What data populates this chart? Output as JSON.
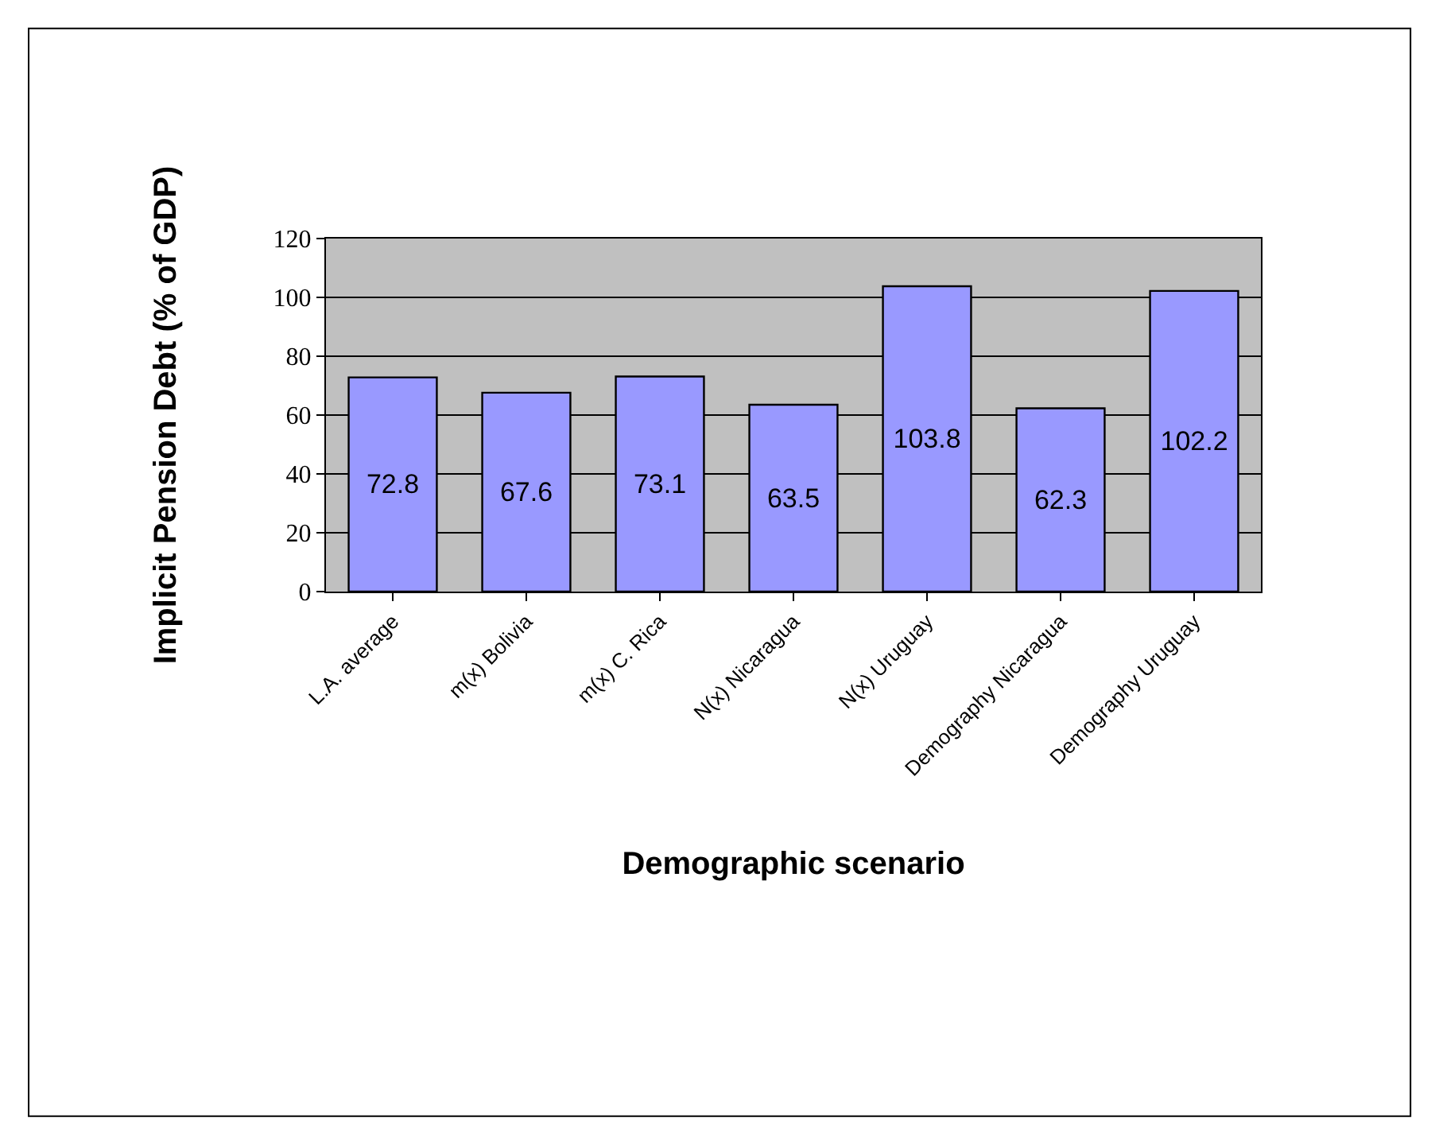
{
  "chart_data": {
    "type": "bar",
    "categories": [
      "L.A. average",
      "m(x) Bolivia",
      "m(x) C. Rica",
      "N(x) Nicaragua",
      "N(x) Uruguay",
      "Demography Nicaragua",
      "Demography Uruguay"
    ],
    "values": [
      72.8,
      67.6,
      73.1,
      63.5,
      103.8,
      62.3,
      102.2
    ],
    "color": "#9999ff",
    "xlabel": "Demographic scenario",
    "ylabel": "Implicit Pension Debt (% of GDP)",
    "ylim": [
      0,
      120
    ],
    "yticks": [
      0,
      20,
      40,
      60,
      80,
      100,
      120
    ],
    "grid": "y",
    "data_labels": true,
    "legend": false
  }
}
